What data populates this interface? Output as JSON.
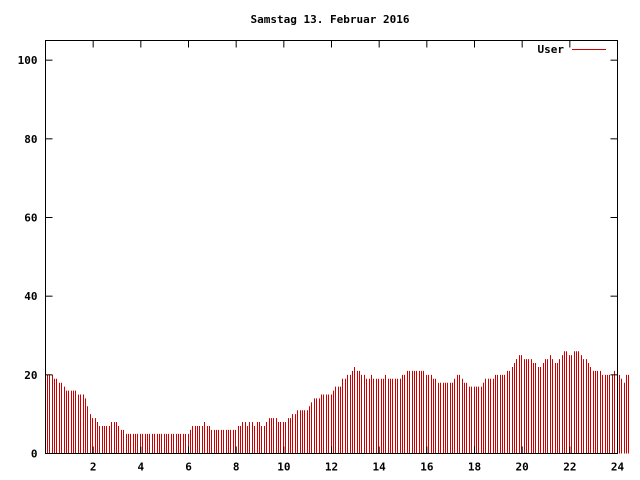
{
  "chart_data": {
    "type": "bar",
    "title": "Samstag 13. Februar 2016",
    "xlabel": "",
    "ylabel": "",
    "xlim": [
      0,
      24
    ],
    "ylim": [
      0,
      105
    ],
    "x_ticks": [
      2,
      4,
      6,
      8,
      10,
      12,
      14,
      16,
      18,
      20,
      22,
      24
    ],
    "y_ticks": [
      0,
      20,
      40,
      60,
      80,
      100
    ],
    "grid": false,
    "legend_position": "top-right",
    "series": [
      {
        "name": "User",
        "color": "#cc0000",
        "sample_interval_hours": 0.1,
        "values": [
          20,
          20,
          20,
          19,
          19,
          18,
          18,
          17,
          16,
          16,
          16,
          16,
          16,
          15,
          15,
          15,
          14,
          12,
          10,
          9,
          9,
          8,
          7,
          7,
          7,
          7,
          7,
          8,
          8,
          8,
          7,
          6,
          6,
          5,
          5,
          5,
          5,
          5,
          5,
          5,
          5,
          5,
          5,
          5,
          5,
          5,
          5,
          5,
          5,
          5,
          5,
          5,
          5,
          5,
          5,
          5,
          5,
          5,
          5,
          5,
          6,
          7,
          7,
          7,
          7,
          7,
          8,
          7,
          7,
          6,
          6,
          6,
          6,
          6,
          6,
          6,
          6,
          6,
          6,
          6,
          7,
          7,
          8,
          8,
          7,
          8,
          8,
          7,
          8,
          8,
          7,
          7,
          8,
          9,
          9,
          9,
          9,
          8,
          8,
          8,
          8,
          9,
          9,
          10,
          10,
          11,
          11,
          11,
          11,
          11,
          12,
          13,
          14,
          14,
          14,
          15,
          15,
          15,
          15,
          15,
          16,
          17,
          17,
          17,
          19,
          19,
          20,
          20,
          21,
          22,
          21,
          21,
          20,
          20,
          19,
          19,
          20,
          19,
          19,
          19,
          19,
          19,
          20,
          19,
          19,
          19,
          19,
          19,
          19,
          20,
          20,
          21,
          21,
          21,
          21,
          21,
          21,
          21,
          21,
          20,
          20,
          20,
          19,
          19,
          18,
          18,
          18,
          18,
          18,
          18,
          18,
          19,
          20,
          20,
          19,
          18,
          18,
          17,
          17,
          17,
          17,
          17,
          17,
          18,
          19,
          19,
          19,
          19,
          20,
          20,
          20,
          20,
          20,
          21,
          21,
          22,
          23,
          24,
          25,
          25,
          24,
          24,
          24,
          24,
          23,
          23,
          22,
          22,
          23,
          24,
          24,
          25,
          24,
          23,
          23,
          24,
          25,
          26,
          26,
          25,
          25,
          26,
          26,
          26,
          25,
          24,
          24,
          23,
          22,
          21,
          21,
          21,
          21,
          20,
          20,
          20,
          20,
          20,
          21,
          21,
          20,
          19,
          18,
          20,
          20
        ]
      }
    ]
  }
}
